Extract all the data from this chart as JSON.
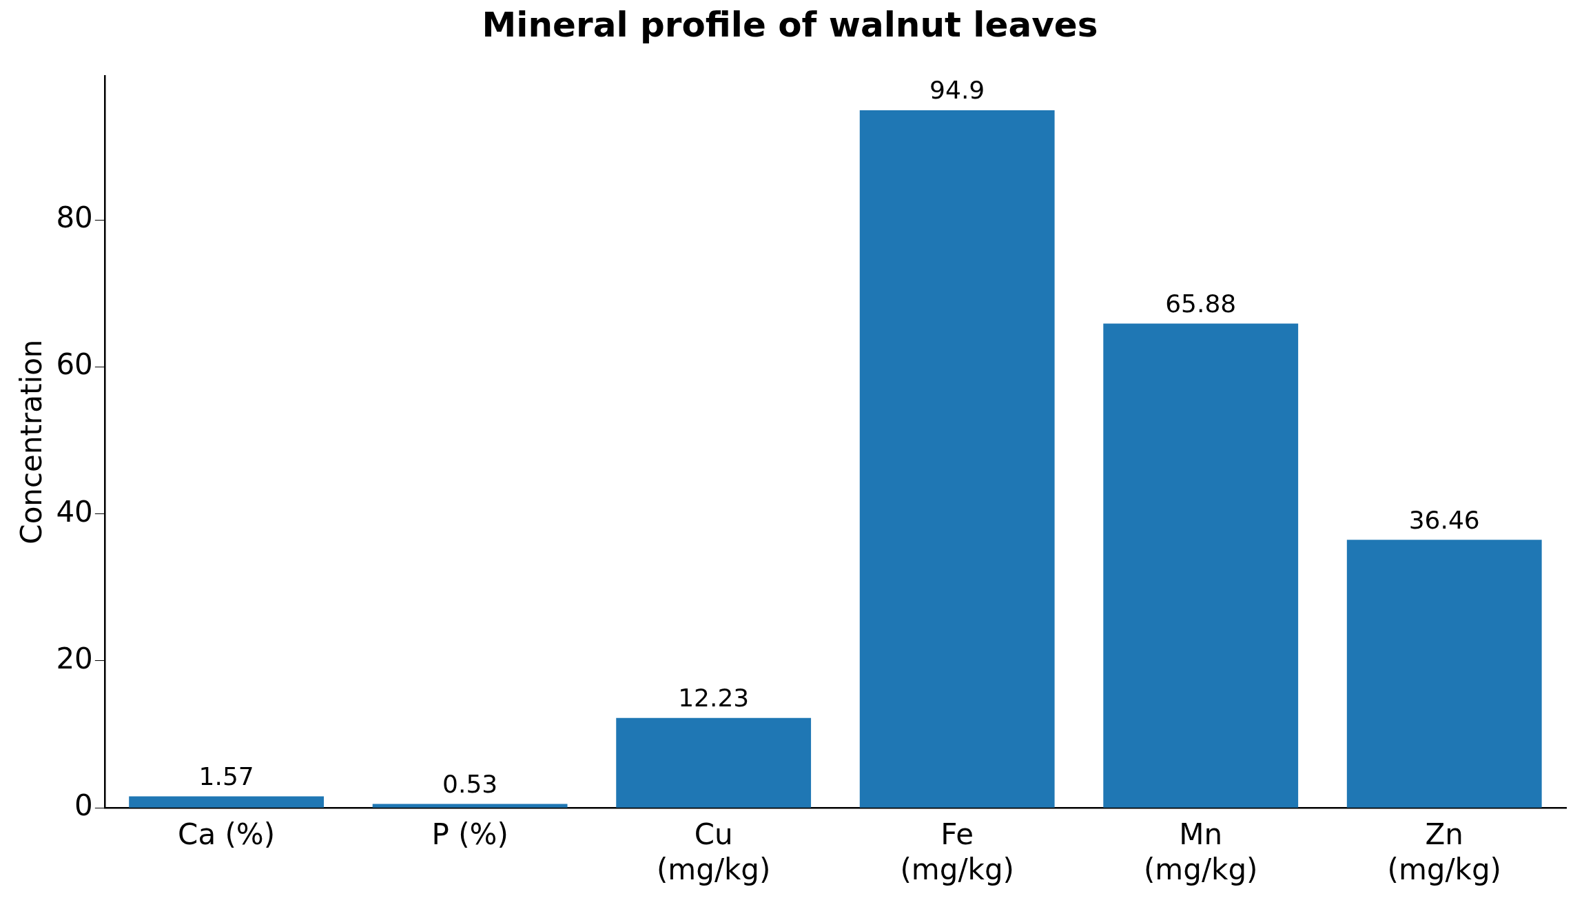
{
  "chart_data": {
    "type": "bar",
    "title": "Mineral profile of walnut leaves",
    "ylabel": "Concentration",
    "categories": [
      "Ca (%)",
      "P (%)",
      "Cu\n(mg/kg)",
      "Fe\n(mg/kg)",
      "Mn\n(mg/kg)",
      "Zn\n(mg/kg)"
    ],
    "values": [
      1.57,
      0.53,
      12.23,
      94.9,
      65.88,
      36.46
    ],
    "color": "#1f77b4",
    "ylim": [
      0,
      99.6
    ],
    "yticks": [
      0,
      20,
      40,
      60,
      80
    ],
    "grid": false,
    "legend": false,
    "data_labels": true
  }
}
